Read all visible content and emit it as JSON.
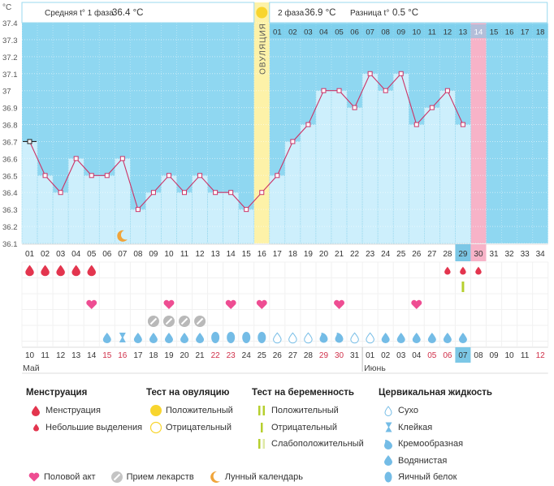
{
  "chart_data": {
    "type": "line",
    "axis_unit": "°C",
    "header": {
      "phase1_label": "Средняя t° 1 фаза",
      "phase1_value": "36.4 °C",
      "phase2_label": "2 фаза",
      "phase2_value": "36.9 °C",
      "diff_label": "Разница t°",
      "diff_value": "0.5 °C"
    },
    "ovulation_label": "ОВУЛЯЦИЯ",
    "yticks": [
      "37.4",
      "37.3",
      "37.2",
      "37.1",
      "37",
      "36.9",
      "36.8",
      "36.7",
      "36.6",
      "36.5",
      "36.4",
      "36.3",
      "36.2",
      "36.1"
    ],
    "ylim": [
      36.1,
      37.4
    ],
    "cycle_days": [
      "01",
      "02",
      "03",
      "04",
      "05",
      "06",
      "07",
      "08",
      "09",
      "10",
      "11",
      "12",
      "13",
      "14",
      "15",
      "16",
      "17",
      "18",
      "19",
      "20",
      "21",
      "22",
      "23",
      "24",
      "25",
      "26",
      "27",
      "28",
      "29",
      "30",
      "31",
      "32",
      "33",
      "34"
    ],
    "phase2_header_days": [
      "01",
      "02",
      "03",
      "04",
      "05",
      "06",
      "07",
      "08",
      "09",
      "10",
      "11",
      "12",
      "13",
      "14",
      "15",
      "16",
      "17",
      "18"
    ],
    "temperatures": [
      36.7,
      36.5,
      36.4,
      36.6,
      36.5,
      36.5,
      36.6,
      36.3,
      36.4,
      36.5,
      36.4,
      36.5,
      36.4,
      36.4,
      36.3,
      36.4,
      36.5,
      36.7,
      36.8,
      37.0,
      37.0,
      36.9,
      37.1,
      37.0,
      37.1,
      36.8,
      36.9,
      37.0,
      36.8
    ],
    "ovulation_day": 16,
    "current_day": 29,
    "expected_period_day": 30,
    "dates": [
      "10",
      "11",
      "12",
      "13",
      "14",
      "15",
      "16",
      "17",
      "18",
      "19",
      "20",
      "21",
      "22",
      "23",
      "24",
      "25",
      "26",
      "27",
      "28",
      "29",
      "30",
      "31",
      "01",
      "02",
      "03",
      "04",
      "05",
      "06",
      "07",
      "08",
      "09",
      "10",
      "11",
      "12"
    ],
    "red_dates_idx": [
      5,
      6,
      12,
      13,
      19,
      20,
      26,
      27,
      33
    ],
    "today_date_idx": 28,
    "month1": "Май",
    "month2": "Июнь",
    "menstruation_days": [
      1,
      2,
      3,
      4,
      5
    ],
    "spotting_days": [
      28,
      29,
      30
    ],
    "preg_test_days": [
      29
    ],
    "intercourse_days": [
      5,
      10,
      14,
      16,
      21,
      26
    ],
    "medicine_days": [
      9,
      10,
      11,
      12
    ],
    "moon_day": 7,
    "cervical": [
      "",
      "",
      "",
      "",
      "",
      "w",
      "s",
      "w",
      "w",
      "w",
      "w",
      "w",
      "e",
      "e",
      "e",
      "e",
      "d",
      "d",
      "d",
      "c",
      "c",
      "d",
      "d",
      "w",
      "w",
      "w",
      "w",
      "w",
      "w"
    ]
  },
  "legend": {
    "menstruation": {
      "title": "Менструация",
      "items": [
        "Менструация",
        "Небольшие выделения"
      ]
    },
    "ovulation_test": {
      "title": "Тест на овуляцию",
      "items": [
        "Положительный",
        "Отрицательный"
      ]
    },
    "pregnancy_test": {
      "title": "Тест на беременность",
      "items": [
        "Положительный",
        "Отрицательный",
        "Слабоположительный"
      ]
    },
    "cervical_fluid": {
      "title": "Цервикальная жидкость",
      "items": [
        "Сухо",
        "Клейкая",
        "Кремообразная",
        "Водянистая",
        "Яичный белок"
      ]
    },
    "bottom": [
      "Половой акт",
      "Прием лекарств",
      "Лунный календарь"
    ]
  },
  "colors": {
    "bg_blue": "#8fd7f1",
    "bar": "#cdeffc",
    "bar_edge": "#9ad9ef",
    "line": "#cc3366",
    "ovulation": "#fdf2a8",
    "ovulation_dot": "#f8d52e",
    "period_pink": "#f7b3c8",
    "today": "#7cc7e6",
    "drop_red": "#e3354e",
    "heart": "#ee4d92",
    "pill": "#b9b9b9",
    "moon": "#f0a43a",
    "fluid": "#74bce6",
    "test_green": "#b6cf2e"
  }
}
